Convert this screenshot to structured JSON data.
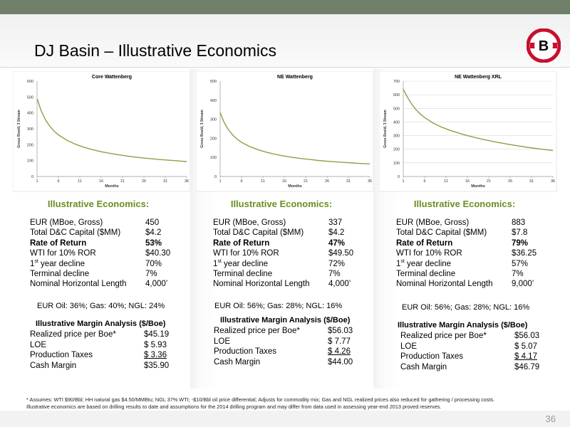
{
  "slide": {
    "title": "DJ Basin – Illustrative Economics",
    "page_number": "36",
    "footnote_line1": "* Assumes: WTI $90/Bbl; HH natural gas $4.50/MMBtu; NGL 37% WTI; -$10/Bbl oil price differential; Adjusts for commodity mix; Gas and NGL realized prices also reduced for gathering / processing costs.",
    "footnote_line2": "Illustrative economics are based on drilling results to date and assumptions for the 2014 drilling program and may differ from data used in assessing year-end 2013 proved reserves.",
    "logo_letter": "B"
  },
  "colors": {
    "topbar": "#6f7f6a",
    "accent_green": "#6b8e23",
    "curve": "#8aa04a",
    "logo_red": "#c8102e"
  },
  "panels": [
    {
      "econ_title": "Illustrative Economics:",
      "metrics": [
        {
          "label": "EUR (MBoe, Gross)",
          "value": "450"
        },
        {
          "label": "Total D&C Capital ($MM)",
          "value": "$4.2"
        },
        {
          "label": "Rate of Return",
          "value": "53%"
        },
        {
          "label": "WTI for 10% ROR",
          "value": "$40.30"
        },
        {
          "label_sup": "st",
          "label_rest": " year decline",
          "label_num": "1",
          "value": "70%"
        },
        {
          "label": "Terminal decline",
          "value": "7%"
        },
        {
          "label": "Nominal Horizontal Length",
          "value": "4,000’"
        }
      ],
      "eur_split": "EUR Oil: 36%; Gas: 40%; NGL: 24%",
      "margin_title": "Illustrative Margin Analysis ($/Boe)",
      "margin": [
        {
          "label": "Realized price per Boe*",
          "value": "$45.19"
        },
        {
          "label": "LOE",
          "value": "$  5.93"
        },
        {
          "label": "Production Taxes",
          "value": "$  3.36"
        },
        {
          "label": "Cash Margin",
          "value": "$35.90"
        }
      ]
    },
    {
      "econ_title": "Illustrative Economics:",
      "metrics": [
        {
          "label": "EUR (MBoe, Gross)",
          "value": "337"
        },
        {
          "label": "Total D&C Capital ($MM)",
          "value": "$4.2"
        },
        {
          "label": "Rate of Return",
          "value": "47%"
        },
        {
          "label": "WTI for 10% ROR",
          "value": "$49.50"
        },
        {
          "label_sup": "st",
          "label_rest": " year decline",
          "label_num": "1",
          "value": "72%"
        },
        {
          "label": "Terminal decline",
          "value": "7%"
        },
        {
          "label": "Nominal Horizontal Length",
          "value": "4,000’"
        }
      ],
      "eur_split": "EUR Oil: 56%; Gas: 28%; NGL: 16%",
      "margin_title": "Illustrative Margin Analysis ($/Boe)",
      "margin": [
        {
          "label": "Realized price per Boe*",
          "value": "$56.03"
        },
        {
          "label": "LOE",
          "value": "$  7.77"
        },
        {
          "label": "Production Taxes",
          "value": "$  4.26"
        },
        {
          "label": "Cash Margin",
          "value": "$44.00"
        }
      ]
    },
    {
      "econ_title": "Illustrative Economics:",
      "metrics": [
        {
          "label": "EUR (MBoe, Gross)",
          "value": "883"
        },
        {
          "label": "Total D&C Capital ($MM)",
          "value": "$7.8"
        },
        {
          "label": "Rate of Return",
          "value": "79%"
        },
        {
          "label": "WTI for 10% ROR",
          "value": "$36.25"
        },
        {
          "label_sup": "st",
          "label_rest": " year decline",
          "label_num": "1",
          "value": "57%"
        },
        {
          "label": "Terminal decline",
          "value": "7%"
        },
        {
          "label": "Nominal Horizontal Length",
          "value": "9,000’"
        }
      ],
      "eur_split": "EUR Oil: 56%; Gas: 28%; NGL: 16%",
      "margin_title": "Illustrative Margin Analysis ($/Boe)",
      "margin": [
        {
          "label": "Realized price per Boe*",
          "value": "$56.03"
        },
        {
          "label": "LOE",
          "value": "$  5.07"
        },
        {
          "label": "Production Taxes",
          "value": "$  4.17"
        },
        {
          "label": "Cash Margin",
          "value": "$46.79"
        }
      ]
    }
  ],
  "chart_data": [
    {
      "type": "line",
      "title": "Core Wattenberg",
      "xlabel": "Months",
      "ylabel": "Gross Boe/d, 3 Stream",
      "xlim": [
        1,
        36
      ],
      "ylim": [
        0,
        600
      ],
      "x_ticks": [
        "1",
        "6",
        "11",
        "16",
        "21",
        "26",
        "31",
        "36"
      ],
      "y_ticks": [
        "0",
        "100",
        "200",
        "300",
        "400",
        "500",
        "600"
      ],
      "grid": false,
      "series": [
        {
          "x": [
            1,
            2,
            3,
            4,
            5,
            6,
            8,
            10,
            12,
            14,
            16,
            18,
            20,
            22,
            24,
            26,
            28,
            30,
            32,
            34,
            36
          ],
          "values": [
            490,
            410,
            355,
            315,
            285,
            262,
            228,
            203,
            184,
            169,
            156,
            146,
            137,
            129,
            122,
            116,
            111,
            106,
            102,
            98,
            94
          ]
        }
      ]
    },
    {
      "type": "line",
      "title": "NE Wattenberg",
      "xlabel": "Months",
      "ylabel": "Gross Boe/d, 3 Stream",
      "xlim": [
        1,
        36
      ],
      "ylim": [
        0,
        500
      ],
      "x_ticks": [
        "1",
        "6",
        "11",
        "16",
        "21",
        "26",
        "31",
        "36"
      ],
      "y_ticks": [
        "0",
        "100",
        "200",
        "300",
        "400",
        "500"
      ],
      "grid": false,
      "series": [
        {
          "x": [
            1,
            2,
            3,
            4,
            5,
            6,
            8,
            10,
            12,
            14,
            16,
            18,
            20,
            22,
            24,
            26,
            28,
            30,
            32,
            34,
            36
          ],
          "values": [
            335,
            280,
            243,
            216,
            195,
            179,
            156,
            139,
            126,
            116,
            107,
            100,
            94,
            89,
            84,
            80,
            77,
            74,
            71,
            68,
            66
          ]
        }
      ]
    },
    {
      "type": "line",
      "title": "NE Wattenberg XRL",
      "xlabel": "Months",
      "ylabel": "Gross Boe/d, 3 Stream",
      "xlim": [
        1,
        36
      ],
      "ylim": [
        0,
        700
      ],
      "x_ticks": [
        "1",
        "6",
        "11",
        "16",
        "21",
        "26",
        "31",
        "36"
      ],
      "y_ticks": [
        "0",
        "100",
        "200",
        "300",
        "400",
        "500",
        "600",
        "700"
      ],
      "grid": true,
      "series": [
        {
          "x": [
            1,
            2,
            3,
            4,
            5,
            6,
            8,
            10,
            12,
            14,
            16,
            18,
            20,
            22,
            24,
            26,
            28,
            30,
            32,
            34,
            36
          ],
          "values": [
            640,
            580,
            530,
            490,
            458,
            432,
            392,
            362,
            338,
            318,
            300,
            284,
            270,
            257,
            245,
            234,
            224,
            214,
            206,
            198,
            190
          ]
        }
      ]
    }
  ]
}
